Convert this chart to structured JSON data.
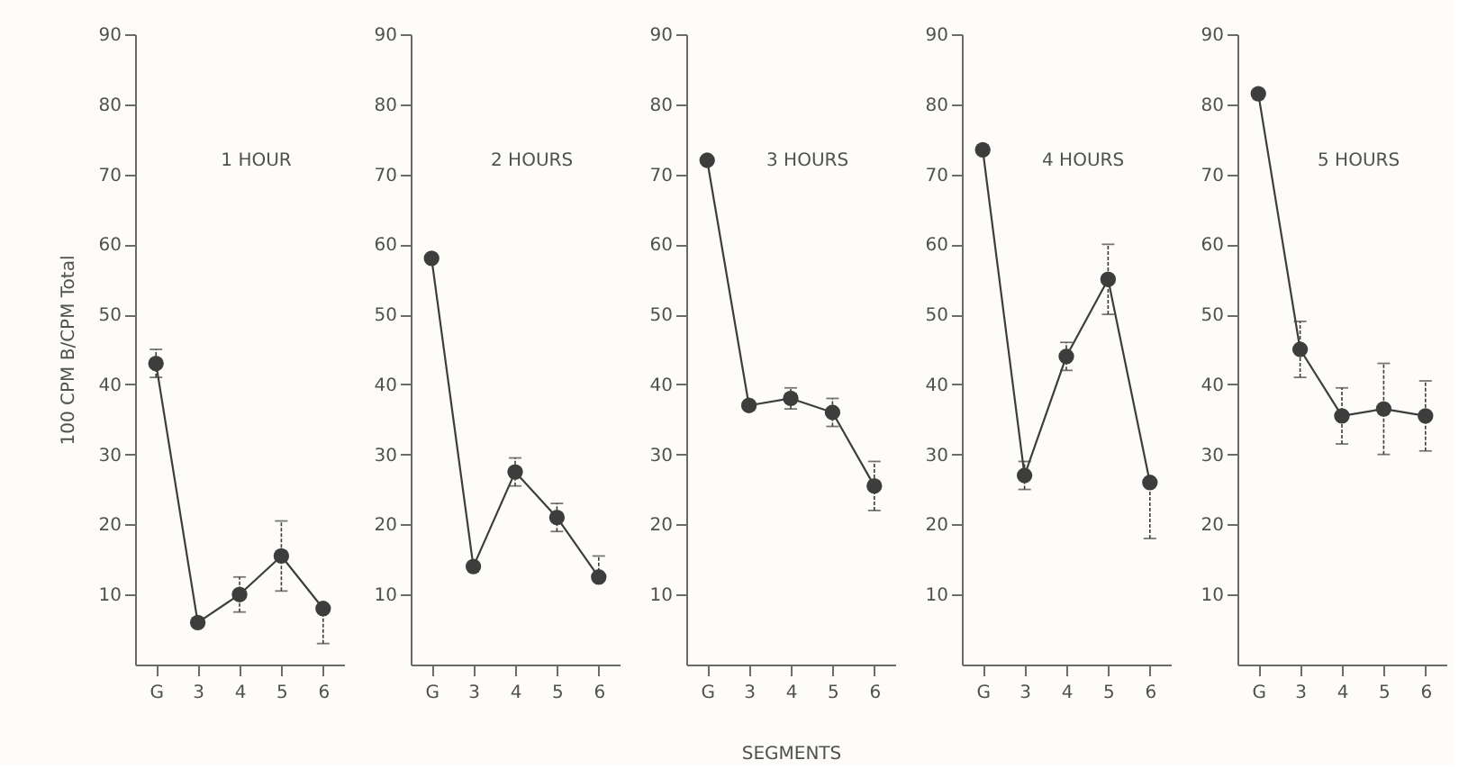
{
  "chart_data": [
    {
      "type": "line",
      "title": "1 HOUR",
      "ylabel": "100 CPM B/CPM Total",
      "categories": [
        "G",
        "3",
        "4",
        "5",
        "6"
      ],
      "series": [
        {
          "color": "#3d3d3d",
          "values": [
            43,
            6,
            10,
            15.5,
            8
          ],
          "errors": [
            2,
            null,
            2.5,
            5,
            [
              3,
              8
            ]
          ]
        }
      ],
      "ylim": [
        0,
        90
      ],
      "yticks": [
        10,
        20,
        30,
        40,
        50,
        60,
        70,
        80,
        90
      ],
      "marker": "circle",
      "line_style": "solid"
    },
    {
      "type": "line",
      "title": "2 HOURS",
      "categories": [
        "G",
        "3",
        "4",
        "5",
        "6"
      ],
      "series": [
        {
          "color": "#3d3d3d",
          "values": [
            58,
            14,
            27.5,
            21,
            12.5
          ],
          "errors": [
            null,
            null,
            2,
            2,
            [
              12.5,
              15.5
            ]
          ]
        }
      ],
      "ylim": [
        0,
        90
      ],
      "yticks": [
        10,
        20,
        30,
        40,
        50,
        60,
        70,
        80,
        90
      ],
      "marker": "circle",
      "line_style": "solid"
    },
    {
      "type": "line",
      "title": "3 HOURS",
      "xlabel": "SEGMENTS",
      "categories": [
        "G",
        "3",
        "4",
        "5",
        "6"
      ],
      "series": [
        {
          "color": "#3d3d3d",
          "values": [
            72,
            37,
            38,
            36,
            25.5
          ],
          "errors": [
            null,
            null,
            1.5,
            2,
            3.5
          ]
        }
      ],
      "ylim": [
        0,
        90
      ],
      "yticks": [
        10,
        20,
        30,
        40,
        50,
        60,
        70,
        80,
        90
      ],
      "marker": "circle",
      "line_style": "solid"
    },
    {
      "type": "line",
      "title": "4 HOURS",
      "categories": [
        "G",
        "3",
        "4",
        "5",
        "6"
      ],
      "series": [
        {
          "color": "#3d3d3d",
          "values": [
            73.5,
            27,
            44,
            55,
            26
          ],
          "errors": [
            null,
            2,
            2,
            5,
            [
              18,
              26
            ]
          ]
        }
      ],
      "ylim": [
        0,
        90
      ],
      "yticks": [
        10,
        20,
        30,
        40,
        50,
        60,
        70,
        80,
        90
      ],
      "marker": "circle",
      "line_style": "solid"
    },
    {
      "type": "line",
      "title": "5 HOURS",
      "categories": [
        "G",
        "3",
        "4",
        "5",
        "6"
      ],
      "series": [
        {
          "color": "#3d3d3d",
          "values": [
            81.5,
            45,
            35.5,
            36.5,
            35.5
          ],
          "errors": [
            null,
            4,
            4,
            6.5,
            5
          ]
        }
      ],
      "ylim": [
        0,
        90
      ],
      "yticks": [
        10,
        20,
        30,
        40,
        50,
        60,
        70,
        80,
        90
      ],
      "marker": "circle",
      "line_style": "solid"
    }
  ]
}
